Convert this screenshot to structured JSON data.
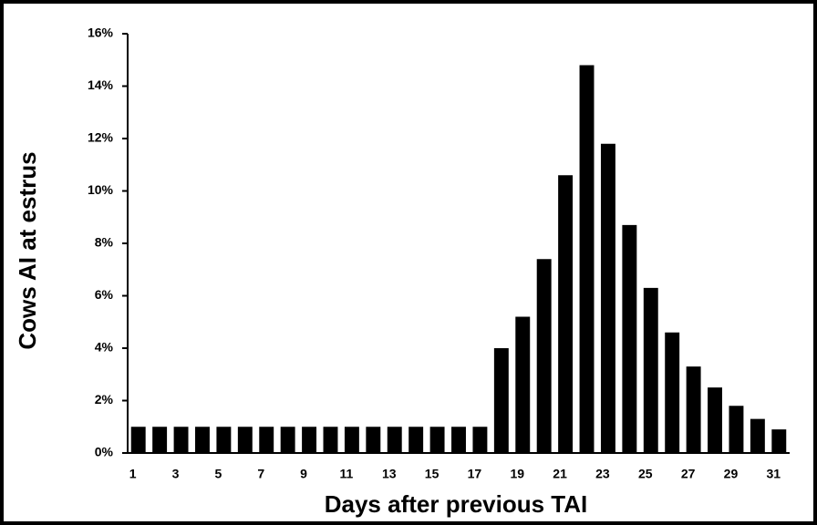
{
  "chart_data": {
    "type": "bar",
    "y_label": "Cows AI at estrus",
    "x_label": "Days after previous TAI",
    "categories": [
      "1",
      null,
      "3",
      null,
      "5",
      null,
      "7",
      null,
      "9",
      null,
      "11",
      null,
      "13",
      null,
      "15",
      null,
      "17",
      null,
      "19",
      null,
      "21",
      null,
      "23",
      null,
      "25",
      null,
      "27",
      null,
      "29",
      null,
      "31"
    ],
    "values": [
      1,
      1,
      1,
      1,
      1,
      1,
      1,
      1,
      1,
      1,
      1,
      1,
      1,
      1,
      1,
      1,
      1,
      4.0,
      5.2,
      7.4,
      10.6,
      14.8,
      11.8,
      8.7,
      6.3,
      4.6,
      3.3,
      2.5,
      1.8,
      1.3,
      0.9
    ],
    "color": "#000000",
    "ylim": [
      0,
      16
    ],
    "yticks": [
      {
        "value": 0,
        "label": "0%"
      },
      {
        "value": 2,
        "label": "2%"
      },
      {
        "value": 4,
        "label": "4%"
      },
      {
        "value": 6,
        "label": "6%"
      },
      {
        "value": 8,
        "label": "8%"
      },
      {
        "value": 10,
        "label": "10%"
      },
      {
        "value": 12,
        "label": "12%"
      },
      {
        "value": 14,
        "label": "14%"
      },
      {
        "value": 16,
        "label": "16%"
      }
    ],
    "grid": false
  }
}
